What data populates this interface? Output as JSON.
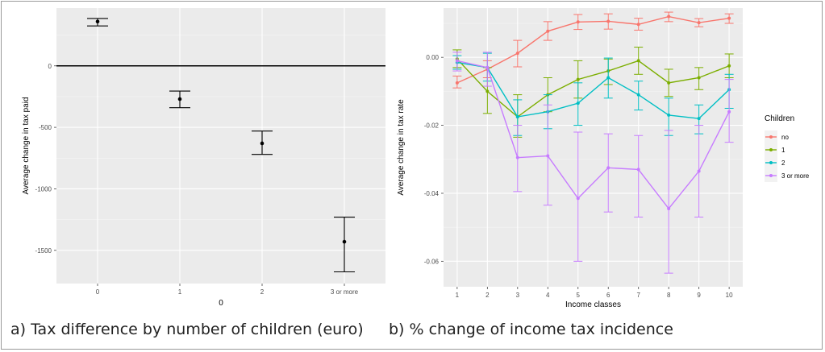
{
  "captions": {
    "a": "a) Tax difference by number of children (euro)",
    "b": "b) % change of income tax incidence"
  },
  "chart_data": [
    {
      "type": "scatter",
      "title": "",
      "xlabel": "0",
      "ylabel": "Average change in tax paid",
      "categories": [
        "0",
        "1",
        "2",
        "3 or more"
      ],
      "ylim": [
        -1770,
        470
      ],
      "yticks": [
        0,
        -500,
        -1000,
        -1500
      ],
      "reference_line": 0,
      "points": [
        {
          "x": "0",
          "y": 360,
          "lower": 325,
          "upper": 385
        },
        {
          "x": "1",
          "y": -270,
          "lower": -340,
          "upper": -205
        },
        {
          "x": "2",
          "y": -630,
          "lower": -720,
          "upper": -530
        },
        {
          "x": "3 or more",
          "y": -1430,
          "lower": -1675,
          "upper": -1230
        }
      ],
      "grid": true
    },
    {
      "type": "line",
      "title": "",
      "xlabel": "Income classes",
      "ylabel": "Average change in tax rate",
      "x": [
        1,
        2,
        3,
        4,
        5,
        6,
        7,
        8,
        9,
        10
      ],
      "xlim": [
        0.55,
        10.45
      ],
      "ylim": [
        -0.0675,
        0.0145
      ],
      "yticks": [
        0.0,
        -0.02,
        -0.04,
        -0.06
      ],
      "ytick_labels": [
        "0.00",
        "-0.02",
        "-0.04",
        "-0.06"
      ],
      "legend": {
        "title": "Children",
        "position": "right"
      },
      "grid": true,
      "series": [
        {
          "name": "no",
          "color": "#F8766D",
          "values": [
            -0.0075,
            -0.0035,
            0.0012,
            0.0077,
            0.0104,
            0.0106,
            0.0097,
            0.012,
            0.0102,
            0.0115
          ],
          "lower": [
            -0.009,
            -0.006,
            -0.0028,
            0.005,
            0.0082,
            0.0083,
            0.008,
            0.0105,
            0.009,
            0.01
          ],
          "upper": [
            -0.0055,
            -0.001,
            0.005,
            0.0105,
            0.0126,
            0.0128,
            0.0115,
            0.0133,
            0.0114,
            0.0128
          ]
        },
        {
          "name": "1",
          "color": "#7CAE00",
          "values": [
            -0.0005,
            -0.01,
            -0.0175,
            -0.011,
            -0.0065,
            -0.004,
            -0.001,
            -0.0075,
            -0.006,
            -0.0025
          ],
          "lower": [
            -0.003,
            -0.0165,
            -0.0235,
            -0.016,
            -0.012,
            -0.008,
            -0.005,
            -0.0115,
            -0.0095,
            -0.006
          ],
          "upper": [
            0.0022,
            -0.003,
            -0.011,
            -0.006,
            -0.001,
            -0.0005,
            0.003,
            -0.0035,
            -0.003,
            0.001
          ]
        },
        {
          "name": "2",
          "color": "#00BFC4",
          "values": [
            -0.0015,
            -0.003,
            -0.0175,
            -0.016,
            -0.0135,
            -0.006,
            -0.011,
            -0.017,
            -0.018,
            -0.0095
          ],
          "lower": [
            -0.0035,
            -0.007,
            -0.023,
            -0.021,
            -0.02,
            -0.012,
            -0.0155,
            -0.023,
            -0.0225,
            -0.015
          ],
          "upper": [
            0.0005,
            0.0012,
            -0.0125,
            -0.011,
            -0.0075,
            -0.0002,
            -0.007,
            -0.012,
            -0.014,
            -0.005
          ]
        },
        {
          "name": "3 or more",
          "color": "#C77CFF",
          "values": [
            -0.001,
            -0.003,
            -0.0295,
            -0.029,
            -0.0415,
            -0.0325,
            -0.033,
            -0.0445,
            -0.0335,
            -0.016
          ],
          "lower": [
            -0.004,
            -0.0085,
            -0.0395,
            -0.0435,
            -0.06,
            -0.0455,
            -0.047,
            -0.0635,
            -0.047,
            -0.025
          ],
          "upper": [
            0.0015,
            0.0015,
            -0.02,
            -0.014,
            -0.022,
            -0.0225,
            -0.023,
            -0.0215,
            -0.02,
            -0.0065
          ]
        }
      ]
    }
  ]
}
